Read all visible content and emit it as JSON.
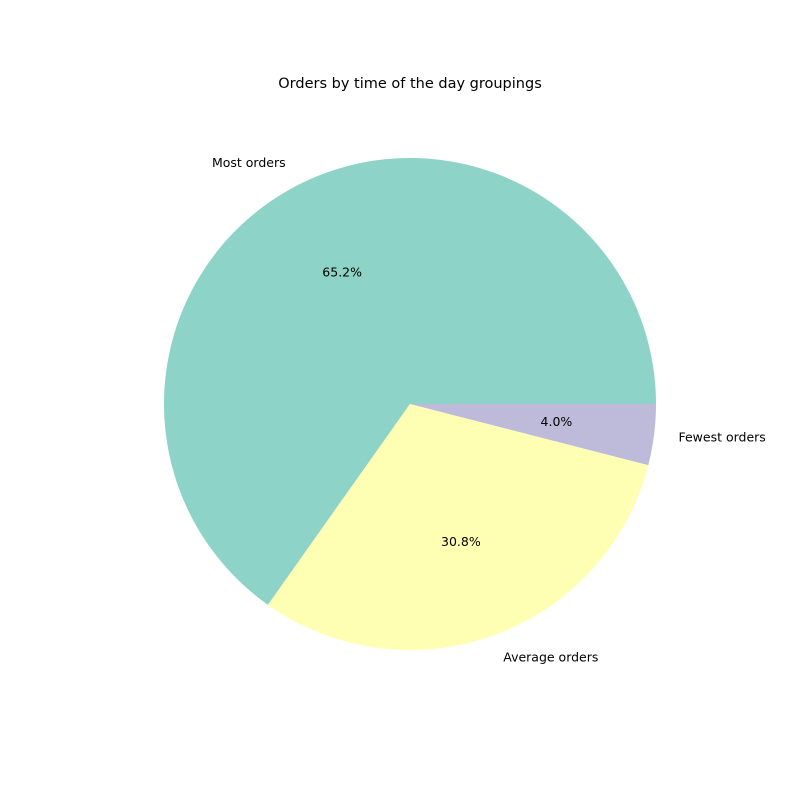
{
  "chart_data": {
    "type": "pie",
    "title": "Orders by time of the day groupings",
    "slices": [
      {
        "label": "Most orders",
        "value": 65.2,
        "pct_label": "65.2%",
        "color": "#8dd3c7"
      },
      {
        "label": "Average orders",
        "value": 30.8,
        "pct_label": "30.8%",
        "color": "#ffffb3"
      },
      {
        "label": "Fewest orders",
        "value": 4.0,
        "pct_label": "4.0%",
        "color": "#bebada"
      }
    ],
    "start_angle_deg": 0,
    "direction": "counterclockwise"
  }
}
